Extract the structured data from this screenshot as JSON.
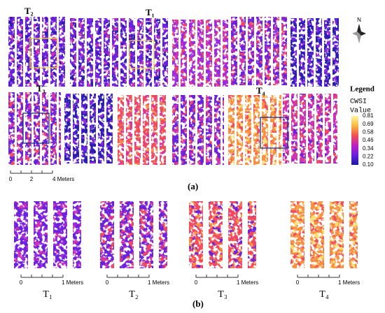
{
  "field_labels": [
    "T₂",
    "T₁",
    "T₃",
    "T₄"
  ],
  "north": "N",
  "legend": {
    "title": "Legend",
    "field": "CWSI",
    "subtitle": "Value",
    "values": [
      "0.81",
      "0.69",
      "0.58",
      "0.46",
      "0.34",
      "0.22",
      "0.10"
    ]
  },
  "scale_a": [
    "0",
    "2",
    "4 Meters"
  ],
  "caption_a": "(a)",
  "panels": [
    {
      "label": "T₁",
      "scale": [
        "0",
        "1 Meters"
      ]
    },
    {
      "label": "T₂",
      "scale": [
        "0",
        "1 Meters"
      ]
    },
    {
      "label": "T₃",
      "scale": [
        "0",
        "1 Meters"
      ]
    },
    {
      "label": "T₄",
      "scale": [
        "0",
        "1 Meters"
      ]
    }
  ],
  "caption_b": "(b)"
}
